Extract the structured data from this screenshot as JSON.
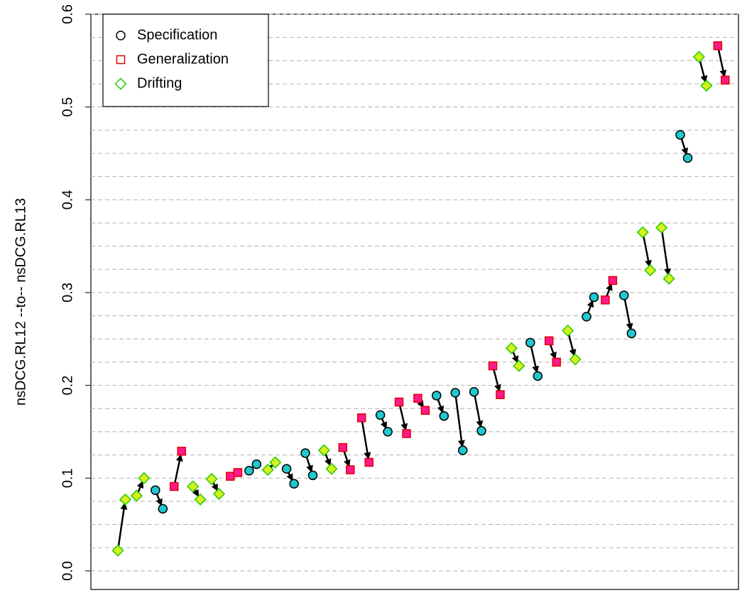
{
  "chart_data": {
    "type": "arrow",
    "y_label": "nsDCG.RL12 --to-- nsDCG.RL13",
    "ylim": [
      -0.02,
      0.6
    ],
    "yticks": [
      {
        "value": 0,
        "label": "0.0"
      },
      0.1,
      0.2,
      0.3,
      0.4,
      0.5,
      0.6
    ],
    "grid": [
      0,
      0.025,
      0.05,
      0.075,
      0.1,
      0.125,
      0.15,
      0.175,
      0.2,
      0.225,
      0.25,
      0.275,
      0.3,
      0.325,
      0.35,
      0.375,
      0.4,
      0.425,
      0.45,
      0.475,
      0.5,
      0.525,
      0.55,
      0.575,
      0.6
    ],
    "legend_position": "top-left",
    "legend": [
      {
        "name": "Specification",
        "shape": "circle",
        "edge": "#000000",
        "fill": "#20c8d0"
      },
      {
        "name": "Generalization",
        "shape": "square",
        "edge": "#e00000",
        "fill": "#ff1a8c"
      },
      {
        "name": "Drifting",
        "shape": "diamond",
        "edge": "#22cc00",
        "fill": "#d8f020"
      }
    ],
    "kind": [
      2,
      2,
      0,
      1,
      2,
      2,
      1,
      0,
      2,
      0,
      0,
      2,
      1,
      1,
      0,
      1,
      1,
      0,
      0,
      0,
      1,
      2,
      0,
      1,
      2,
      0,
      1,
      0,
      2,
      2,
      0,
      2,
      1
    ],
    "from": [
      0.022,
      0.081,
      0.087,
      0.091,
      0.091,
      0.099,
      0.102,
      0.108,
      0.109,
      0.11,
      0.127,
      0.13,
      0.133,
      0.165,
      0.168,
      0.182,
      0.186,
      0.189,
      0.192,
      0.193,
      0.221,
      0.24,
      0.246,
      0.248,
      0.259,
      0.274,
      0.292,
      0.297,
      0.365,
      0.37,
      0.47,
      0.554,
      0.566
    ],
    "to": [
      0.077,
      0.1,
      0.067,
      0.129,
      0.077,
      0.083,
      0.106,
      0.115,
      0.117,
      0.094,
      0.103,
      0.11,
      0.109,
      0.117,
      0.15,
      0.148,
      0.173,
      0.167,
      0.13,
      0.151,
      0.19,
      0.221,
      0.21,
      0.225,
      0.228,
      0.295,
      0.313,
      0.256,
      0.324,
      0.315,
      0.445,
      0.523,
      0.529
    ]
  }
}
